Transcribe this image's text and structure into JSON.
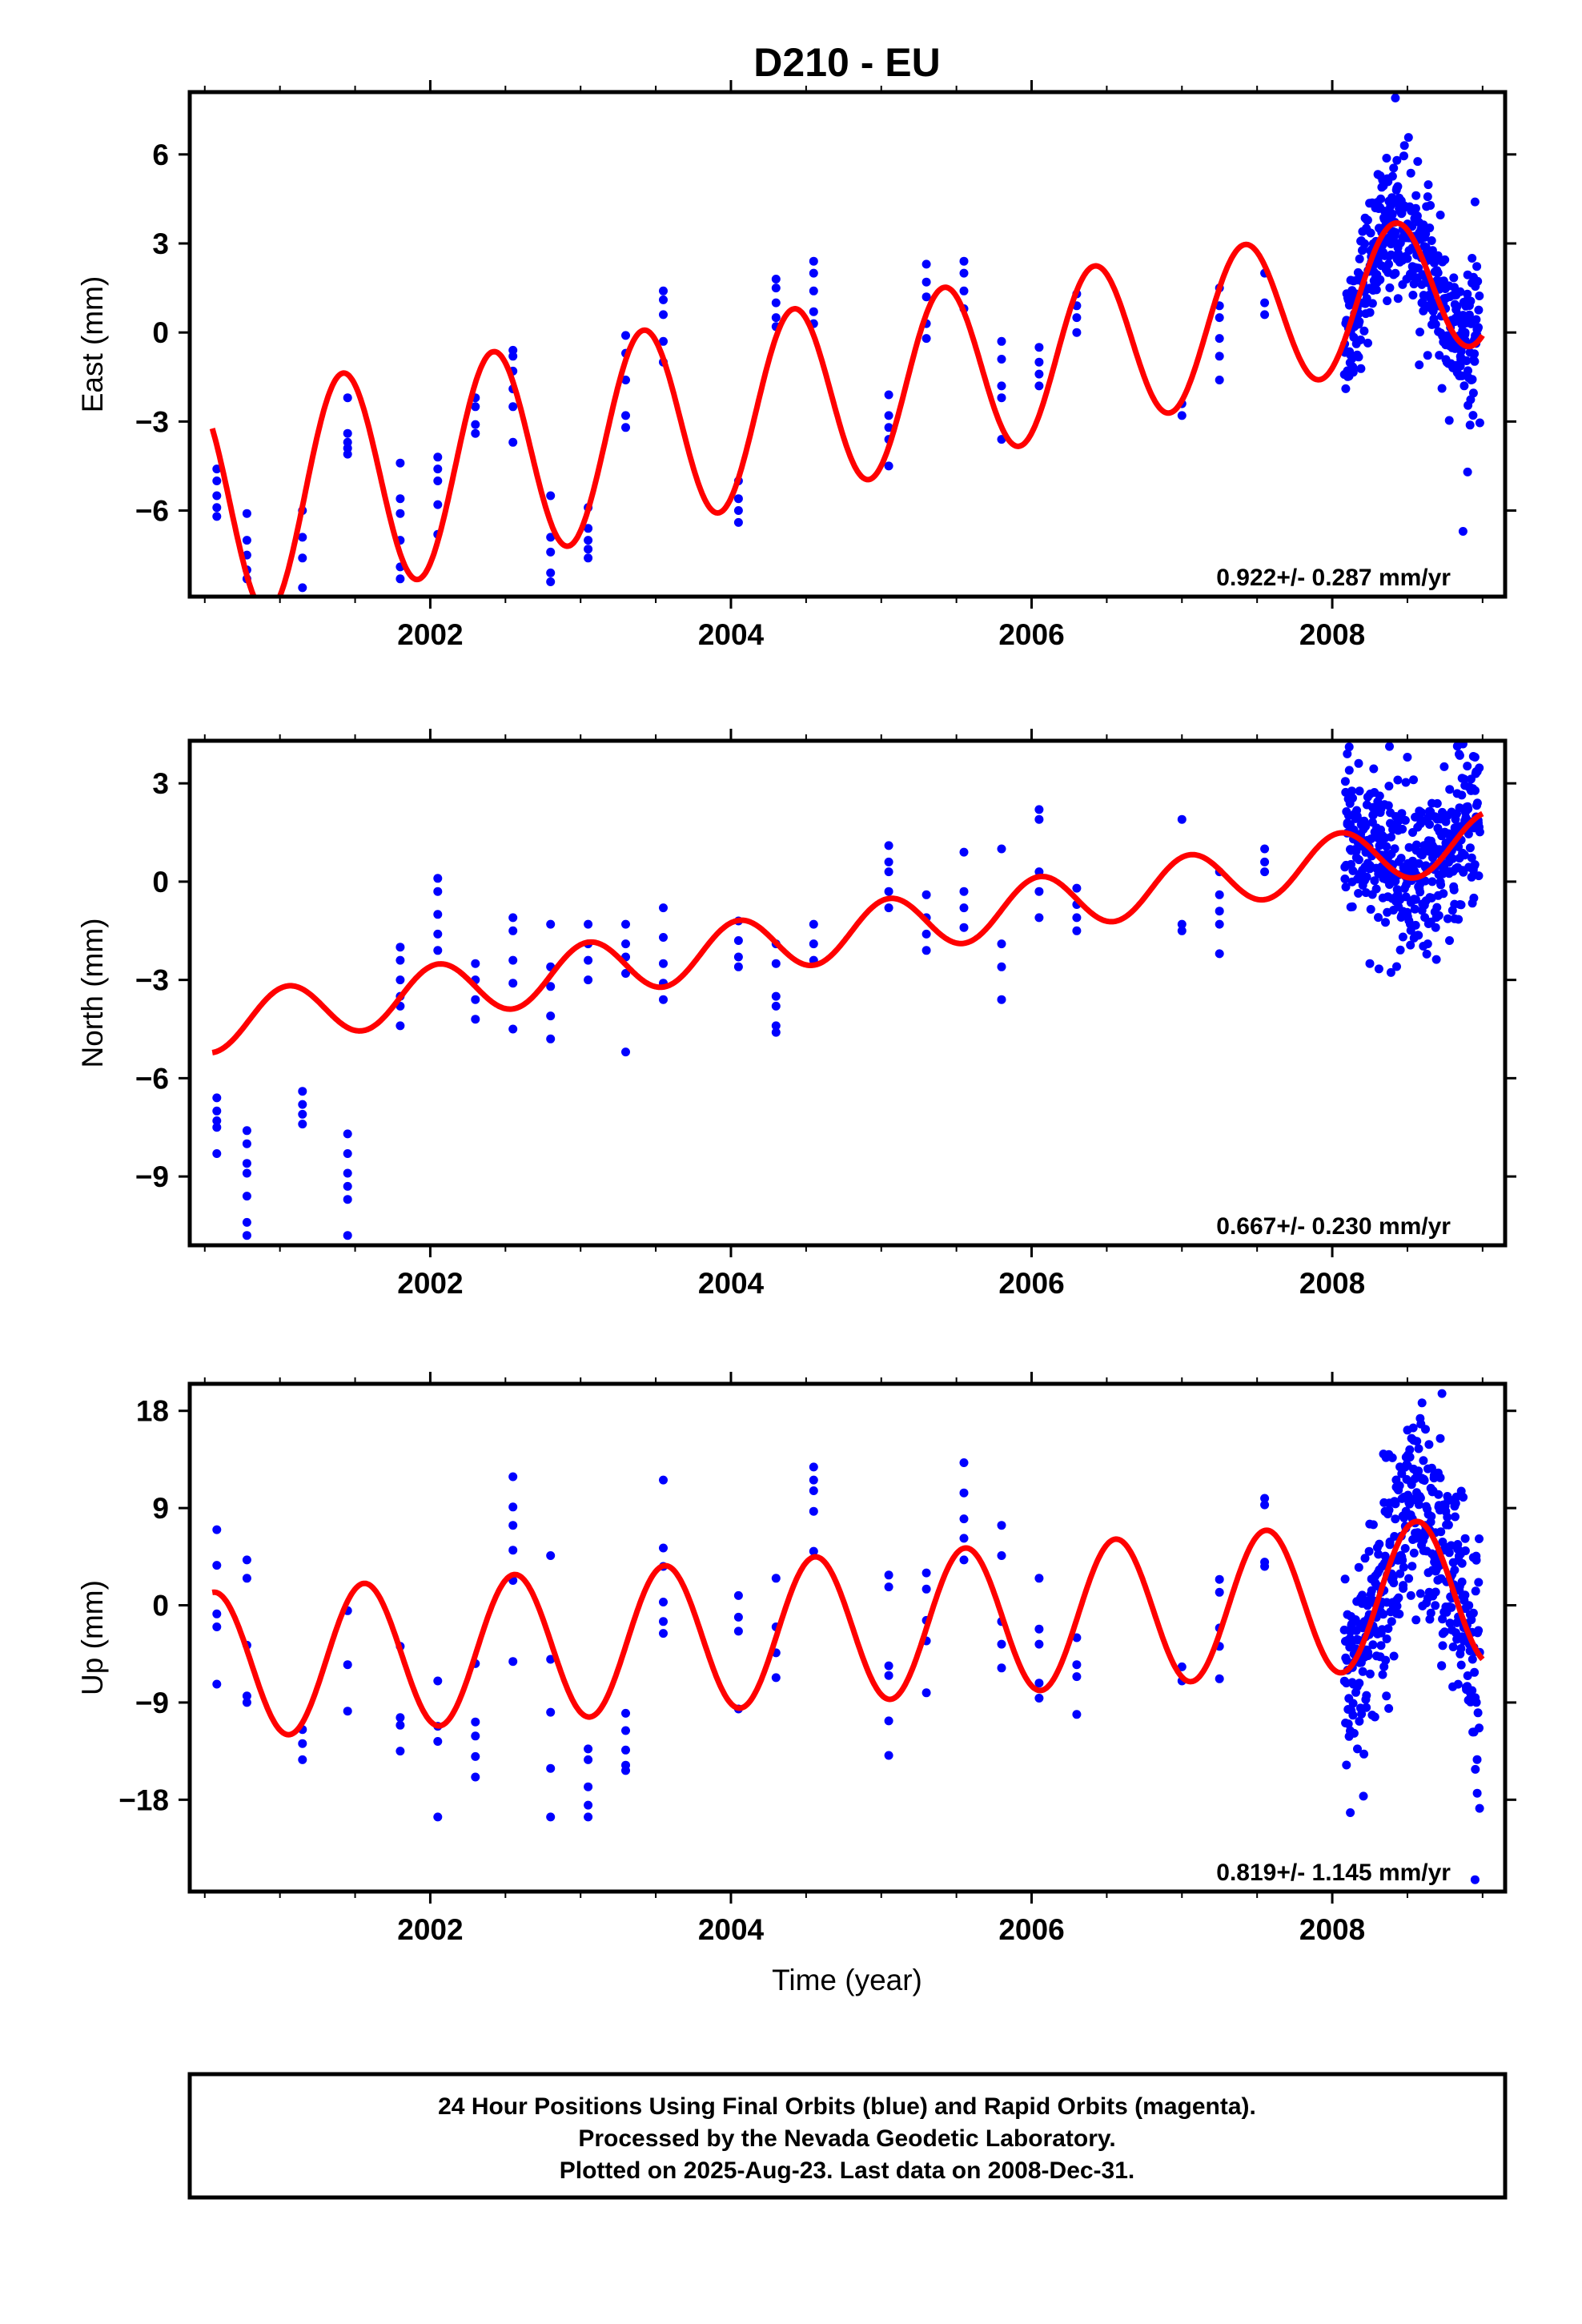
{
  "figure_title": "D210 - EU",
  "caption": {
    "lines": [
      "24 Hour Positions Using Final Orbits (blue) and Rapid Orbits (magenta).",
      "Processed by the Nevada Geodetic Laboratory.",
      "Plotted on 2025-Aug-23. Last data on 2008-Dec-31."
    ]
  },
  "colors": {
    "observations": "#0000ff",
    "model": "#ff0000",
    "frame": "#000000"
  },
  "chart_data": [
    {
      "type": "scatter",
      "ylabel": "East (mm)",
      "xlabel": "",
      "xlim": [
        2000.4,
        2009.15
      ],
      "ylim": [
        -8.9,
        8.1
      ],
      "xticks": [
        2002,
        2004,
        2006,
        2008
      ],
      "yticks": [
        -6,
        -3,
        0,
        3,
        6
      ],
      "rate_label": "0.922+/- 0.287 mm/yr",
      "model": {
        "mid": 2004.7,
        "offset": -2.1,
        "rate": 0.922,
        "amp": 3.1,
        "amp_change": -0.2,
        "phase_peak": 0.42,
        "x_start": 2000.55,
        "x_end": 2009.0
      },
      "observations": [
        {
          "x": 2000.58,
          "y": [
            -4.6,
            -5.0,
            -5.5,
            -5.9,
            -6.2
          ]
        },
        {
          "x": 2000.78,
          "y": [
            -6.1,
            -7.0,
            -7.5,
            -8.0,
            -8.3
          ]
        },
        {
          "x": 2001.15,
          "y": [
            -6.0,
            -6.9,
            -7.6,
            -8.6
          ]
        },
        {
          "x": 2001.45,
          "y": [
            -2.2,
            -3.4,
            -3.7,
            -3.9,
            -4.1
          ]
        },
        {
          "x": 2001.8,
          "y": [
            -4.4,
            -5.6,
            -6.1,
            -7.0,
            -7.9,
            -8.3
          ]
        },
        {
          "x": 2002.05,
          "y": [
            -4.2,
            -4.6,
            -5.0,
            -5.8,
            -6.8
          ]
        },
        {
          "x": 2002.3,
          "y": [
            -2.2,
            -2.5,
            -3.1,
            -3.4
          ]
        },
        {
          "x": 2002.55,
          "y": [
            -0.6,
            -0.8,
            -1.3,
            -1.9,
            -2.5,
            -3.7
          ]
        },
        {
          "x": 2002.8,
          "y": [
            -5.5,
            -6.9,
            -7.4,
            -8.1,
            -8.4
          ]
        },
        {
          "x": 2003.05,
          "y": [
            -5.9,
            -6.6,
            -7.0,
            -7.3,
            -7.6
          ]
        },
        {
          "x": 2003.3,
          "y": [
            -0.1,
            -0.7,
            -1.6,
            -2.8,
            -3.2
          ]
        },
        {
          "x": 2003.55,
          "y": [
            1.4,
            1.1,
            0.6,
            -0.3,
            -1.0
          ]
        },
        {
          "x": 2004.05,
          "y": [
            -5.0,
            -5.6,
            -6.0,
            -6.4
          ]
        },
        {
          "x": 2004.3,
          "y": [
            1.8,
            1.5,
            1.0,
            0.5,
            0.2
          ]
        },
        {
          "x": 2004.55,
          "y": [
            2.4,
            2.0,
            1.4,
            0.7,
            0.3
          ]
        },
        {
          "x": 2005.05,
          "y": [
            -2.1,
            -2.8,
            -3.2,
            -3.6,
            -4.5
          ]
        },
        {
          "x": 2005.3,
          "y": [
            2.3,
            1.7,
            1.2,
            0.3,
            -0.2
          ]
        },
        {
          "x": 2005.55,
          "y": [
            2.4,
            2.0,
            1.4,
            0.8
          ]
        },
        {
          "x": 2005.8,
          "y": [
            -0.3,
            -0.9,
            -1.8,
            -2.2,
            -3.6
          ]
        },
        {
          "x": 2006.05,
          "y": [
            -0.5,
            -1.0,
            -1.4,
            -1.8
          ]
        },
        {
          "x": 2006.3,
          "y": [
            1.3,
            0.9,
            0.5,
            0.0
          ]
        },
        {
          "x": 2007.0,
          "y": [
            -2.4,
            -2.8
          ]
        },
        {
          "x": 2007.25,
          "y": [
            1.5,
            0.9,
            0.5,
            -0.2,
            -0.8,
            -1.6
          ]
        },
        {
          "x": 2007.55,
          "y": [
            2.0,
            1.0,
            0.6
          ]
        }
      ],
      "dense_segment": {
        "x_start": 2008.08,
        "x_end": 2008.98,
        "count": 420,
        "spread": 1.1,
        "outliers": [
          [
            2008.42,
            7.9
          ],
          [
            2008.48,
            6.3
          ],
          [
            2008.95,
            4.4
          ],
          [
            2008.93,
            2.5
          ],
          [
            2008.87,
            -6.7
          ],
          [
            2008.9,
            -4.7
          ]
        ]
      }
    },
    {
      "type": "scatter",
      "ylabel": "North (mm)",
      "xlabel": "",
      "xlim": [
        2000.4,
        2009.15
      ],
      "ylim": [
        -11.1,
        4.3
      ],
      "xticks": [
        2002,
        2004,
        2006,
        2008
      ],
      "yticks": [
        -9,
        -6,
        -3,
        0,
        3
      ],
      "rate_label": "0.667+/- 0.230 mm/yr",
      "model": {
        "mid": 2004.7,
        "offset": -1.6,
        "rate": 0.667,
        "amp": 0.85,
        "amp_change": 0.0,
        "phase_peak": 0.05,
        "x_start": 2000.55,
        "x_end": 2009.0
      },
      "observations": [
        {
          "x": 2000.58,
          "y": [
            -6.6,
            -7.0,
            -7.3,
            -7.5,
            -8.3
          ]
        },
        {
          "x": 2000.78,
          "y": [
            -7.6,
            -8.0,
            -8.6,
            -8.9,
            -9.6,
            -10.4,
            -10.8
          ]
        },
        {
          "x": 2001.15,
          "y": [
            -6.4,
            -6.8,
            -7.1,
            -7.4
          ]
        },
        {
          "x": 2001.45,
          "y": [
            -7.7,
            -8.3,
            -8.9,
            -9.3,
            -9.7,
            -10.8
          ]
        },
        {
          "x": 2001.8,
          "y": [
            -2.0,
            -2.4,
            -3.0,
            -3.5,
            -3.8,
            -4.4
          ]
        },
        {
          "x": 2002.05,
          "y": [
            0.1,
            -0.3,
            -1.0,
            -1.6,
            -2.1
          ]
        },
        {
          "x": 2002.3,
          "y": [
            -2.5,
            -3.0,
            -3.6,
            -4.2
          ]
        },
        {
          "x": 2002.55,
          "y": [
            -1.1,
            -1.5,
            -2.4,
            -3.1,
            -4.5
          ]
        },
        {
          "x": 2002.8,
          "y": [
            -1.3,
            -2.6,
            -3.2,
            -4.1,
            -4.8
          ]
        },
        {
          "x": 2003.05,
          "y": [
            -1.3,
            -1.9,
            -2.4,
            -3.0
          ]
        },
        {
          "x": 2003.3,
          "y": [
            -1.3,
            -1.9,
            -2.3,
            -2.8,
            -5.2
          ]
        },
        {
          "x": 2003.55,
          "y": [
            -0.8,
            -1.7,
            -2.5,
            -3.1,
            -3.6
          ]
        },
        {
          "x": 2004.05,
          "y": [
            -1.2,
            -1.8,
            -2.3,
            -2.6
          ]
        },
        {
          "x": 2004.3,
          "y": [
            -1.9,
            -2.5,
            -3.5,
            -3.8,
            -4.4,
            -4.6
          ]
        },
        {
          "x": 2004.55,
          "y": [
            -1.3,
            -1.9,
            -2.4
          ]
        },
        {
          "x": 2005.05,
          "y": [
            1.1,
            0.6,
            0.3,
            -0.3,
            -0.8
          ]
        },
        {
          "x": 2005.3,
          "y": [
            -0.4,
            -1.1,
            -1.6,
            -2.1
          ]
        },
        {
          "x": 2005.55,
          "y": [
            0.9,
            -0.3,
            -0.8,
            -1.4
          ]
        },
        {
          "x": 2005.8,
          "y": [
            1.0,
            -1.9,
            -2.6,
            -3.6
          ]
        },
        {
          "x": 2006.05,
          "y": [
            2.2,
            1.9,
            0.3,
            -0.3,
            -1.1
          ]
        },
        {
          "x": 2006.3,
          "y": [
            -0.2,
            -0.7,
            -1.1,
            -1.5
          ]
        },
        {
          "x": 2007.0,
          "y": [
            1.9,
            -1.3,
            -1.5
          ]
        },
        {
          "x": 2007.25,
          "y": [
            0.3,
            -0.4,
            -0.9,
            -1.3,
            -2.2
          ]
        },
        {
          "x": 2007.55,
          "y": [
            1.0,
            0.6,
            0.3
          ]
        }
      ],
      "dense_segment": {
        "x_start": 2008.08,
        "x_end": 2008.98,
        "count": 400,
        "spread": 1.2,
        "outliers": [
          [
            2008.1,
            3.9
          ],
          [
            2008.5,
            3.8
          ],
          [
            2008.95,
            3.8
          ],
          [
            2008.25,
            -2.5
          ],
          [
            2008.78,
            -1.8
          ]
        ]
      }
    },
    {
      "type": "scatter",
      "ylabel": "Up (mm)",
      "xlabel": "Time (year)",
      "xlim": [
        2000.4,
        2009.15
      ],
      "ylim": [
        -26.5,
        20.5
      ],
      "xticks": [
        2002,
        2004,
        2006,
        2008
      ],
      "yticks": [
        -18,
        -9,
        0,
        9,
        18
      ],
      "rate_label": "0.819+/- 1.145 mm/yr",
      "model": {
        "mid": 2004.7,
        "offset": -2.2,
        "rate": 0.819,
        "amp": 6.8,
        "amp_change": 0.0,
        "phase_peak": 0.56,
        "x_start": 2000.55,
        "x_end": 2009.0
      },
      "observations": [
        {
          "x": 2000.58,
          "y": [
            7.0,
            3.7,
            -0.8,
            -2.0,
            -7.3
          ]
        },
        {
          "x": 2000.78,
          "y": [
            4.2,
            2.5,
            -3.7,
            -8.4,
            -9.0
          ]
        },
        {
          "x": 2001.15,
          "y": [
            -11.5,
            -12.8,
            -14.3
          ]
        },
        {
          "x": 2001.45,
          "y": [
            -0.5,
            -5.5,
            -9.8
          ]
        },
        {
          "x": 2001.8,
          "y": [
            -3.8,
            -10.4,
            -11.1,
            -13.5
          ]
        },
        {
          "x": 2002.05,
          "y": [
            -7.0,
            -11.2,
            -12.6,
            -19.6
          ]
        },
        {
          "x": 2002.3,
          "y": [
            -5.4,
            -10.8,
            -12.1,
            -14.0,
            -15.9
          ]
        },
        {
          "x": 2002.55,
          "y": [
            11.9,
            9.1,
            7.4,
            5.1,
            2.3,
            -5.2
          ]
        },
        {
          "x": 2002.8,
          "y": [
            4.6,
            -5.0,
            -9.9,
            -15.1,
            -19.6
          ]
        },
        {
          "x": 2003.05,
          "y": [
            -13.3,
            -14.3,
            -16.8,
            -18.5,
            -19.6
          ]
        },
        {
          "x": 2003.3,
          "y": [
            -10.0,
            -11.6,
            -13.4,
            -14.8,
            -15.3
          ]
        },
        {
          "x": 2003.55,
          "y": [
            11.6,
            5.3,
            3.6,
            0.3,
            -1.5,
            -2.6
          ]
        },
        {
          "x": 2004.05,
          "y": [
            0.9,
            -1.1,
            -2.4,
            -9.6
          ]
        },
        {
          "x": 2004.3,
          "y": [
            2.5,
            -2.0,
            -4.4,
            -6.7
          ]
        },
        {
          "x": 2004.55,
          "y": [
            12.8,
            11.6,
            10.6,
            8.7,
            5.0
          ]
        },
        {
          "x": 2005.05,
          "y": [
            2.8,
            1.7,
            -5.6,
            -6.5,
            -10.7,
            -13.9
          ]
        },
        {
          "x": 2005.3,
          "y": [
            3.0,
            1.5,
            -1.4,
            -3.3,
            -8.1
          ]
        },
        {
          "x": 2005.55,
          "y": [
            13.2,
            10.4,
            8.0,
            6.2,
            4.2
          ]
        },
        {
          "x": 2005.8,
          "y": [
            7.4,
            4.6,
            -1.5,
            -3.6,
            -5.8
          ]
        },
        {
          "x": 2006.05,
          "y": [
            2.5,
            -2.2,
            -3.6,
            -7.2,
            -8.6
          ]
        },
        {
          "x": 2006.3,
          "y": [
            -3.0,
            -5.5,
            -6.6,
            -10.1
          ]
        },
        {
          "x": 2007.0,
          "y": [
            -5.7,
            -7.0
          ]
        },
        {
          "x": 2007.25,
          "y": [
            2.4,
            1.2,
            -2.1,
            -3.8,
            -6.8
          ]
        },
        {
          "x": 2007.55,
          "y": [
            9.9,
            9.3,
            4.0,
            3.6
          ]
        }
      ],
      "dense_segment": {
        "x_start": 2008.08,
        "x_end": 2008.98,
        "count": 420,
        "spread": 5.0,
        "outliers": [
          [
            2008.73,
            19.6
          ],
          [
            2008.95,
            -25.4
          ],
          [
            2008.12,
            -19.2
          ],
          [
            2008.98,
            -18.8
          ],
          [
            2008.62,
            16.3
          ]
        ]
      }
    }
  ]
}
